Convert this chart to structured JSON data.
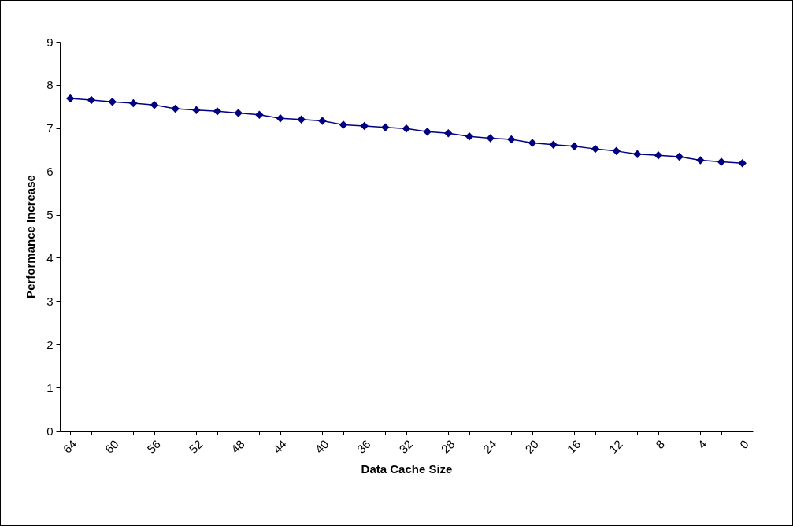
{
  "chart_data": {
    "type": "line",
    "xlabel": "Data Cache Size",
    "ylabel": "Performance Increase",
    "categories": [
      "64",
      null,
      "60",
      null,
      "56",
      null,
      "52",
      null,
      "48",
      null,
      "44",
      null,
      "40",
      null,
      "36",
      null,
      "32",
      null,
      "28",
      null,
      "24",
      null,
      "20",
      null,
      "16",
      null,
      "12",
      null,
      "8",
      null,
      "4",
      null,
      "0"
    ],
    "series": [
      {
        "color": "#000080",
        "values": [
          7.69,
          7.65,
          7.61,
          7.58,
          7.54,
          7.45,
          7.42,
          7.39,
          7.35,
          7.31,
          7.23,
          7.2,
          7.17,
          7.08,
          7.05,
          7.02,
          6.99,
          6.92,
          6.88,
          6.81,
          6.77,
          6.74,
          6.66,
          6.62,
          6.58,
          6.52,
          6.47,
          6.4,
          6.37,
          6.34,
          6.26,
          6.22,
          6.19
        ]
      }
    ],
    "ylim": [
      0,
      9
    ],
    "yticks": [
      0,
      1,
      2,
      3,
      4,
      5,
      6,
      7,
      8,
      9
    ],
    "grid": false,
    "marker": "diamond",
    "line_style": "solid"
  }
}
